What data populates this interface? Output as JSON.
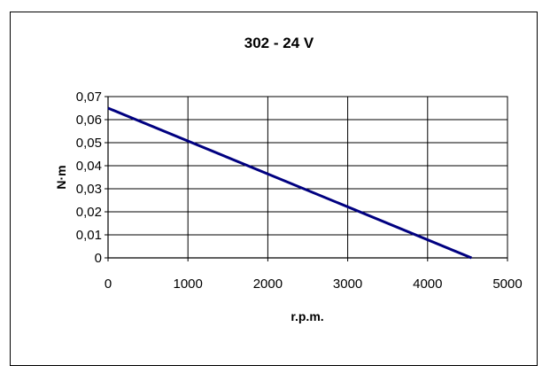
{
  "chart_data": {
    "type": "line",
    "title": "302 - 24 V",
    "xlabel": "r.p.m.",
    "ylabel": "N·m",
    "xlim": [
      0,
      5000
    ],
    "ylim": [
      0,
      0.07
    ],
    "xticks": [
      "0",
      "1000",
      "2000",
      "3000",
      "4000",
      "5000"
    ],
    "xtick_values": [
      0,
      1000,
      2000,
      3000,
      4000,
      5000
    ],
    "yticks": [
      "0",
      "0,01",
      "0,02",
      "0,03",
      "0,04",
      "0,05",
      "0,06",
      "0,07"
    ],
    "ytick_values": [
      0,
      0.01,
      0.02,
      0.03,
      0.04,
      0.05,
      0.06,
      0.07
    ],
    "grid": true,
    "series": [
      {
        "x": [
          0,
          4550
        ],
        "y": [
          0.065,
          0
        ],
        "color": "#000080"
      }
    ]
  }
}
